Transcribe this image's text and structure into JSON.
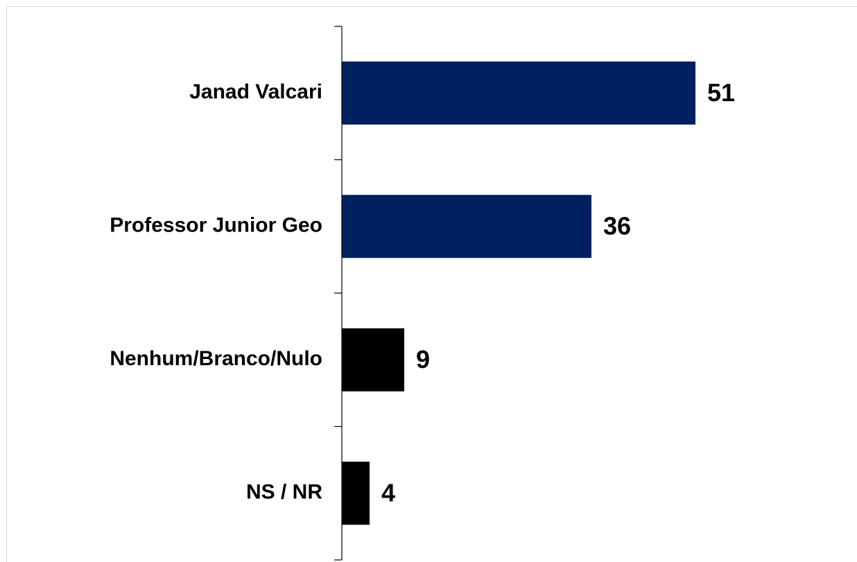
{
  "chart_data": {
    "type": "bar",
    "orientation": "horizontal",
    "categories": [
      "Janad Valcari",
      "Professor Junior Geo",
      "Nenhum/Branco/Nulo",
      "NS / NR"
    ],
    "values": [
      51,
      36,
      9,
      4
    ],
    "colors": [
      "#002060",
      "#002060",
      "#000000",
      "#000000"
    ]
  }
}
